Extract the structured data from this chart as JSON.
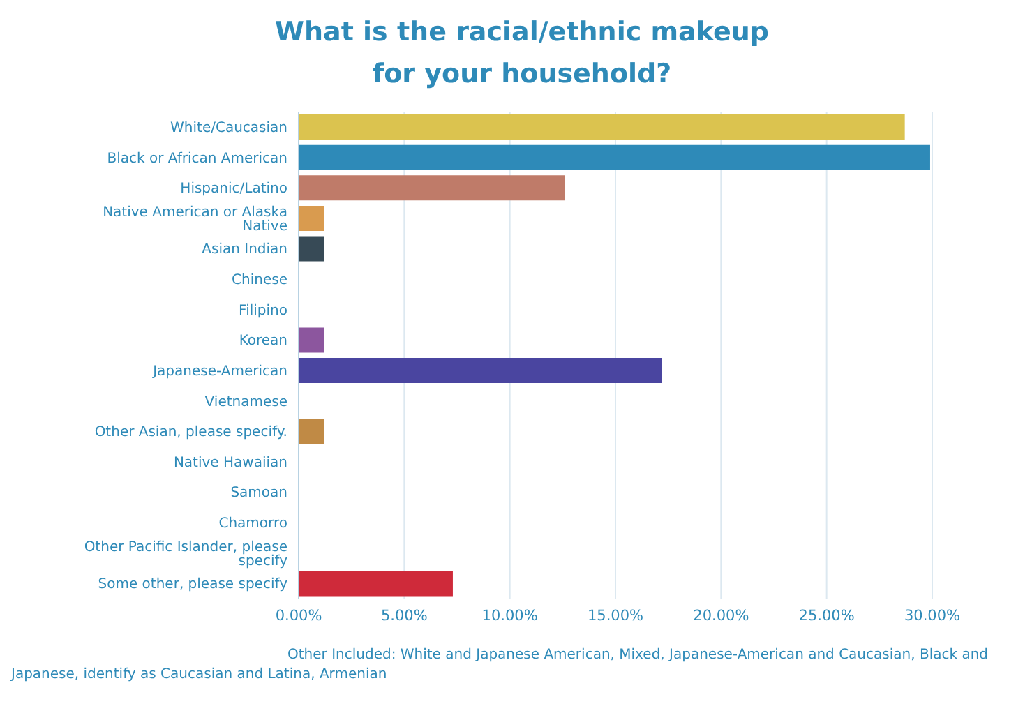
{
  "chart_data": {
    "type": "bar",
    "orientation": "horizontal",
    "title": "What is the racial/ethnic makeup for your household?",
    "categories": [
      "White/Caucasian",
      "Black or African American",
      "Hispanic/Latino",
      "Native American or Alaska Native",
      "Asian Indian",
      "Chinese",
      "Filipino",
      "Korean",
      "Japanese-American",
      "Vietnamese",
      "Other Asian, please specify.",
      "Native Hawaiian",
      "Samoan",
      "Chamorro",
      "Other Pacific Islander, please specify",
      "Some other, please specify"
    ],
    "values": [
      28.7,
      29.9,
      12.6,
      1.2,
      1.2,
      0,
      0,
      1.2,
      17.2,
      0,
      1.2,
      0,
      0,
      0,
      0,
      7.3
    ],
    "colors": [
      "#dbc34f",
      "#2e8ab8",
      "#bf7b69",
      "#d99b4f",
      "#374a56",
      "#888888",
      "#888888",
      "#8c569e",
      "#4a45a0",
      "#888888",
      "#c08a45",
      "#888888",
      "#888888",
      "#888888",
      "#888888",
      "#cf2a3a"
    ],
    "xlim": [
      0,
      30
    ],
    "xticks": [
      {
        "value": 0,
        "label": "0.00%"
      },
      {
        "value": 5,
        "label": "5.00%"
      },
      {
        "value": 10,
        "label": "10.00%"
      },
      {
        "value": 15,
        "label": "15.00%"
      },
      {
        "value": 20,
        "label": "20.00%"
      },
      {
        "value": 25,
        "label": "25.00%"
      },
      {
        "value": 30,
        "label": "30.00%"
      }
    ],
    "grid": "x",
    "annotations": [
      "Other Included: White and Japanese American, Mixed, Japanese-American and Caucasian, Black and Japanese,  identify as Caucasian and Latina, Armenian"
    ]
  }
}
